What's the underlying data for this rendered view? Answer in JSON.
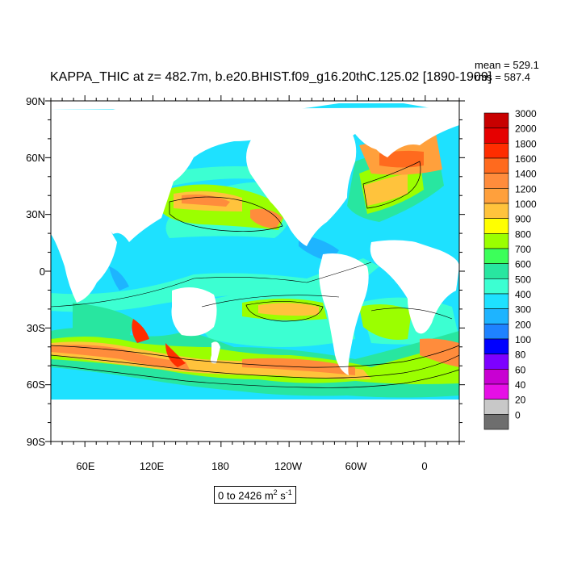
{
  "title": "KAPPA_THIC at z= 482.7m, b.e20.BHIST.f09_g16.20thC.125.02 [1890-1909]",
  "stats": {
    "mean": "mean = 529.1",
    "rms": "rms = 587.4"
  },
  "range_label": {
    "text": "0 to 2426 m",
    "unit_power_1": "2",
    "unit_mid": " s",
    "unit_power_2": "-1"
  },
  "map": {
    "projection": "cylindrical equidistant",
    "lon_range_deg_east": [
      30,
      390
    ],
    "lat_range": [
      -90,
      90
    ],
    "lat_tick_labels": [
      "90N",
      "60N",
      "30N",
      "0",
      "30S",
      "60S",
      "90S"
    ],
    "lon_tick_labels": [
      "60E",
      "120E",
      "180",
      "120W",
      "60W",
      "0"
    ],
    "land_color": "#ffffff",
    "contour_line_color": "#000000"
  },
  "colorbar": {
    "levels": [
      "3000",
      "2000",
      "1800",
      "1600",
      "1400",
      "1200",
      "1000",
      "900",
      "800",
      "700",
      "600",
      "500",
      "400",
      "300",
      "200",
      "100",
      "80",
      "60",
      "40",
      "20",
      "0"
    ],
    "colors": [
      "#c80000",
      "#e60000",
      "#ff2d00",
      "#ff6a1e",
      "#ff8c3c",
      "#ffa03c",
      "#ffc33c",
      "#ffff00",
      "#9bff00",
      "#3cff5a",
      "#28e6a0",
      "#3cffd2",
      "#1ee1ff",
      "#1eb4ff",
      "#1e82ff",
      "#0000ff",
      "#7d00ff",
      "#c800d2",
      "#e60fe6",
      "#c8c8c8",
      "#6e6e6e"
    ]
  }
}
